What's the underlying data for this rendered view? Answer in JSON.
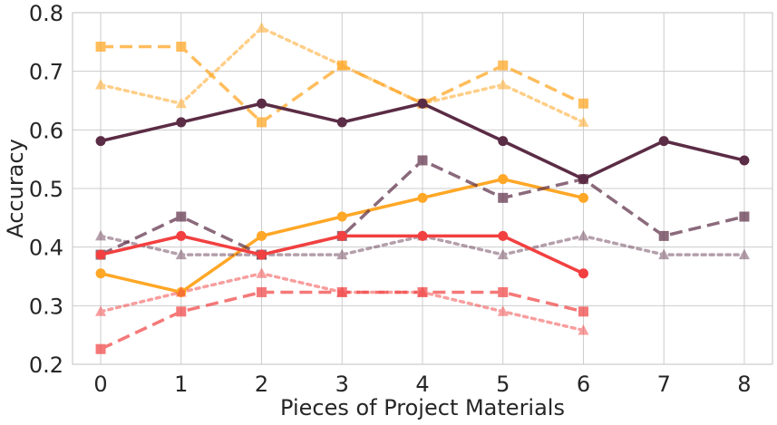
{
  "chart_data": {
    "type": "line",
    "title": "",
    "xlabel": "Pieces of Project Materials",
    "ylabel": "Accuracy",
    "xlim": [
      -0.35,
      8.35
    ],
    "ylim": [
      0.2,
      0.8
    ],
    "xticks": [
      0,
      1,
      2,
      3,
      4,
      5,
      6,
      7,
      8
    ],
    "yticks": [
      0.2,
      0.3,
      0.4,
      0.5,
      0.6,
      0.7,
      0.8
    ],
    "grid": true,
    "legend": "none",
    "series": [
      {
        "name": "orange-dotted-triangle",
        "color": "#ffa726",
        "style": "dotted",
        "marker": "triangle",
        "alpha": 0.55,
        "x": [
          0,
          1,
          2,
          3,
          4,
          5,
          6
        ],
        "y": [
          0.677,
          0.645,
          0.774,
          0.71,
          0.645,
          0.677,
          0.613
        ]
      },
      {
        "name": "orange-dashed-square",
        "color": "#ffa726",
        "style": "dashed",
        "marker": "square",
        "alpha": 0.75,
        "x": [
          0,
          1,
          2,
          3,
          4,
          5,
          6
        ],
        "y": [
          0.742,
          0.742,
          0.613,
          0.71,
          0.645,
          0.71,
          0.645
        ]
      },
      {
        "name": "orange-solid-circle",
        "color": "#ffa726",
        "style": "solid",
        "marker": "circle",
        "alpha": 1,
        "x": [
          0,
          1,
          2,
          3,
          4,
          5,
          6
        ],
        "y": [
          0.355,
          0.323,
          0.419,
          0.452,
          0.484,
          0.516,
          0.484
        ]
      },
      {
        "name": "purple-dotted-triangle",
        "color": "#5b2c45",
        "style": "dotted",
        "marker": "triangle",
        "alpha": 0.45,
        "x": [
          0,
          1,
          2,
          3,
          4,
          5,
          6,
          7,
          8
        ],
        "y": [
          0.419,
          0.387,
          0.387,
          0.387,
          0.419,
          0.387,
          0.419,
          0.387,
          0.387
        ]
      },
      {
        "name": "purple-dashed-square",
        "color": "#5b2c45",
        "style": "dashed",
        "marker": "square",
        "alpha": 0.7,
        "x": [
          0,
          1,
          2,
          3,
          4,
          5,
          6,
          7,
          8
        ],
        "y": [
          0.387,
          0.452,
          0.387,
          0.419,
          0.548,
          0.484,
          0.516,
          0.419,
          0.452
        ]
      },
      {
        "name": "purple-solid-circle",
        "color": "#5b2c45",
        "style": "solid",
        "marker": "circle",
        "alpha": 1,
        "x": [
          0,
          1,
          2,
          3,
          4,
          5,
          6,
          7,
          8
        ],
        "y": [
          0.581,
          0.613,
          0.645,
          0.613,
          0.645,
          0.581,
          0.516,
          0.581,
          0.548
        ]
      },
      {
        "name": "red-dotted-triangle",
        "color": "#f24040",
        "style": "dotted",
        "marker": "triangle",
        "alpha": 0.5,
        "x": [
          0,
          1,
          2,
          3,
          4,
          5,
          6
        ],
        "y": [
          0.29,
          0.323,
          0.355,
          0.323,
          0.323,
          0.29,
          0.258
        ]
      },
      {
        "name": "red-dashed-square",
        "color": "#f24040",
        "style": "dashed",
        "marker": "square",
        "alpha": 0.7,
        "x": [
          0,
          1,
          2,
          3,
          4,
          5,
          6
        ],
        "y": [
          0.226,
          0.29,
          0.323,
          0.323,
          0.323,
          0.323,
          0.29
        ]
      },
      {
        "name": "red-solid-circle",
        "color": "#f24040",
        "style": "solid",
        "marker": "circle",
        "alpha": 1,
        "x": [
          0,
          1,
          2,
          3,
          4,
          5,
          6
        ],
        "y": [
          0.387,
          0.419,
          0.387,
          0.419,
          0.419,
          0.419,
          0.355
        ]
      }
    ]
  }
}
